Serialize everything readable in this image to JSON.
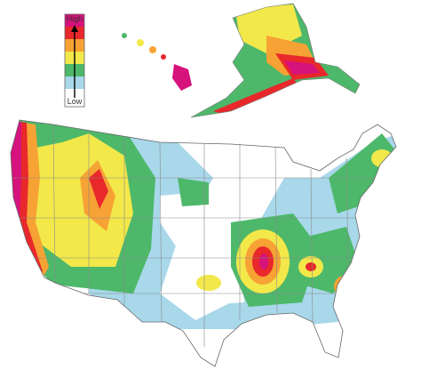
{
  "legend": {
    "high": "High",
    "low": "Low"
  }
}
